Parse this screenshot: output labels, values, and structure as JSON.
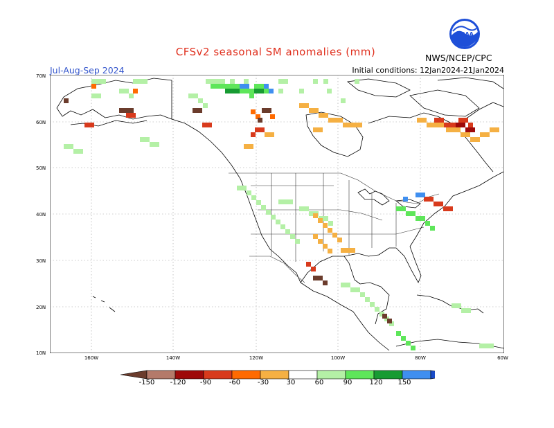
{
  "title": "CFSv2 seasonal SM anomalies (mm)",
  "period": "Jul-Aug-Sep 2024",
  "initial_conditions": "Initial conditions: 12Jan2024-21Jan2024",
  "agency": "NWS/NCEP/CPC",
  "logo_text": "NOAA",
  "lat_labels": [
    "70N",
    "60N",
    "50N",
    "40N",
    "30N",
    "20N",
    "10N"
  ],
  "lon_labels": [
    "160W",
    "140W",
    "120W",
    "100W",
    "80W",
    "60W"
  ],
  "colorbar": {
    "labels": [
      "-150",
      "-120",
      "-90",
      "-60",
      "-30",
      "30",
      "60",
      "90",
      "120",
      "150"
    ],
    "colors": [
      "#6b3c2c",
      "#b47a6a",
      "#9e0a0a",
      "#d83a1c",
      "#ff6a00",
      "#f5b043",
      "#ffffff",
      "#b4f0a6",
      "#5ee65a",
      "#179b32",
      "#3f8ff0",
      "#1a4cc8"
    ]
  },
  "colors": {
    "land_green_light": "#b4f0a6",
    "land_green_mid": "#5ee65a",
    "land_green_dark": "#179b32",
    "blue": "#3f8ff0",
    "orange": "#f5b043",
    "red_orange": "#ff6a00",
    "red": "#d83a1c",
    "dark_red": "#9e0a0a",
    "brown": "#6b3c2c"
  }
}
